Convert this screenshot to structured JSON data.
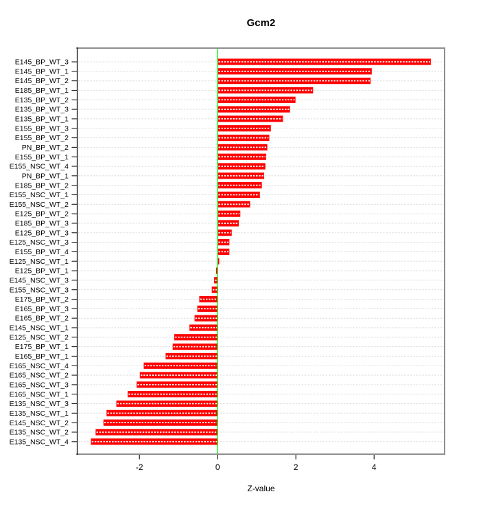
{
  "page": {
    "background": "#ffffff"
  },
  "chart_data": {
    "type": "bar",
    "orientation": "horizontal",
    "title": "Gcm2",
    "xlabel": "Z-value",
    "ylabel": "",
    "categories": [
      "E145_BP_WT_3",
      "E145_BP_WT_1",
      "E145_BP_WT_2",
      "E185_BP_WT_1",
      "E135_BP_WT_2",
      "E135_BP_WT_3",
      "E135_BP_WT_1",
      "E155_BP_WT_3",
      "E155_BP_WT_2",
      "PN_BP_WT_2",
      "E155_BP_WT_1",
      "E155_NSC_WT_4",
      "PN_BP_WT_1",
      "E185_BP_WT_2",
      "E155_NSC_WT_1",
      "E155_NSC_WT_2",
      "E125_BP_WT_2",
      "E185_BP_WT_3",
      "E125_BP_WT_3",
      "E125_NSC_WT_3",
      "E155_BP_WT_4",
      "E125_NSC_WT_1",
      "E125_BP_WT_1",
      "E145_NSC_WT_3",
      "E155_NSC_WT_3",
      "E175_BP_WT_2",
      "E165_BP_WT_3",
      "E165_BP_WT_2",
      "E145_NSC_WT_1",
      "E125_NSC_WT_2",
      "E175_BP_WT_1",
      "E165_BP_WT_1",
      "E165_NSC_WT_4",
      "E165_NSC_WT_2",
      "E165_NSC_WT_3",
      "E165_NSC_WT_1",
      "E135_NSC_WT_3",
      "E135_NSC_WT_1",
      "E145_NSC_WT_2",
      "E135_NSC_WT_2",
      "E135_NSC_WT_4"
    ],
    "values": [
      5.45,
      3.94,
      3.91,
      2.44,
      1.99,
      1.85,
      1.67,
      1.36,
      1.32,
      1.27,
      1.24,
      1.22,
      1.19,
      1.13,
      1.08,
      0.83,
      0.58,
      0.54,
      0.36,
      0.3,
      0.3,
      0.04,
      -0.04,
      -0.09,
      -0.15,
      -0.47,
      -0.52,
      -0.59,
      -0.72,
      -1.11,
      -1.15,
      -1.33,
      -1.89,
      -1.99,
      -2.07,
      -2.3,
      -2.59,
      -2.84,
      -2.92,
      -3.12,
      -3.24
    ],
    "xlim": [
      -3.6,
      5.82
    ],
    "xticks": [
      -2,
      0,
      2,
      4
    ],
    "xtick_labels": [
      "-2",
      "0",
      "2",
      "4"
    ],
    "grid": "horizontal-dotted",
    "zero_line_at": 0,
    "legend": "none",
    "colors": {
      "bar": "#ff0000",
      "bar_stripe": "#ffffff",
      "zero_line": "#00ff00",
      "grid": "#dcdcdc",
      "frame": "#8e8e8e",
      "axis": "#000000",
      "tick": "#1a1a1a",
      "text": "#000000"
    }
  }
}
